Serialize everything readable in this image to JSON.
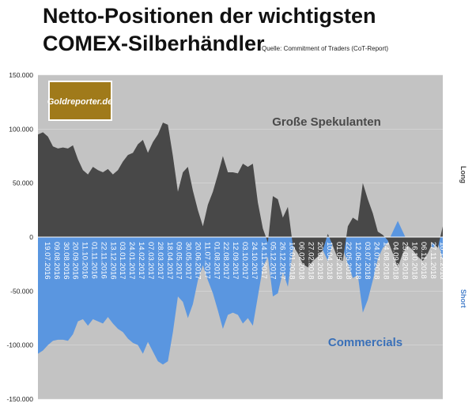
{
  "title_line1": "Netto-Positionen der wichtigsten",
  "title_line2": "COMEX-Silberhändler",
  "source": "Quelle: Commitment of Traders (CoT-Report)",
  "logo": {
    "text": "Goldreporter.de",
    "background": "#a07a1a"
  },
  "chart_data": {
    "type": "area",
    "title": "Netto-Positionen der wichtigsten COMEX-Silberhändler",
    "ylim": [
      -150000,
      150000
    ],
    "y_ticks": [
      150000,
      100000,
      50000,
      0,
      -50000,
      -100000,
      -150000
    ],
    "y_tick_labels": [
      "150.000",
      "100.000",
      "50.000",
      "0",
      "-50.000",
      "-100.000",
      "-150.000"
    ],
    "right_labels": [
      "Long",
      "Short"
    ],
    "x_tick_labels": [
      "19.07.2016",
      "09.08.2016",
      "30.08.2016",
      "20.09.2016",
      "11.10.2016",
      "01.11.2016",
      "22.11.2016",
      "13.12.2016",
      "03.01.2017",
      "24.01.2017",
      "14.02.2017",
      "07.03.2017",
      "28.03.2017",
      "18.04.2017",
      "09.05.2017",
      "30.05.2017",
      "20.06.2017",
      "11.07.2017",
      "01.08.2017",
      "22.08.2017",
      "12.09.2017",
      "03.10.2017",
      "24.10.2017",
      "14.11.2017",
      "05.12.2017",
      "26.12.2017",
      "16.01.2018",
      "06.02.2018",
      "27.02.2018",
      "20.03.2018",
      "10.04.2018",
      "01.05.2018",
      "22.05.2018",
      "12.06.2018",
      "03.07.2018",
      "24.07.2018",
      "14.08.2018",
      "04.09.2018",
      "25.09.2018",
      "16.10.2018",
      "06.11.2018",
      "27.11.2018",
      "18.12.2018"
    ],
    "background": "#c3c3c3",
    "series": [
      {
        "name": "Große Spekulanten",
        "color": "#484848",
        "values": [
          95000,
          97000,
          93000,
          84000,
          82000,
          83000,
          82000,
          85000,
          72000,
          62000,
          58000,
          65000,
          62000,
          60000,
          63000,
          58000,
          62000,
          70000,
          76000,
          78000,
          86000,
          90000,
          78000,
          88000,
          95000,
          106000,
          104000,
          75000,
          42000,
          60000,
          65000,
          43000,
          25000,
          10000,
          30000,
          42000,
          58000,
          75000,
          60000,
          60000,
          59000,
          68000,
          65000,
          68000,
          32000,
          8000,
          -5000,
          38000,
          35000,
          18000,
          28000,
          -8000,
          -15000,
          -25000,
          -28000,
          -22000,
          -18000,
          -12000,
          3000,
          -8000,
          -20000,
          -22000,
          10000,
          18000,
          15000,
          50000,
          35000,
          22000,
          5000,
          2000,
          -3000,
          -15000,
          -28000,
          -15000,
          -8000,
          -12000,
          -18000,
          -22000,
          -15000,
          -5000,
          -10000,
          10000
        ]
      },
      {
        "name": "Commercials",
        "color": "#5a96e0",
        "values": [
          -108000,
          -105000,
          -100000,
          -96000,
          -95000,
          -95000,
          -96000,
          -90000,
          -78000,
          -76000,
          -82000,
          -76000,
          -78000,
          -80000,
          -74000,
          -80000,
          -85000,
          -88000,
          -94000,
          -98000,
          -100000,
          -108000,
          -97000,
          -106000,
          -115000,
          -118000,
          -115000,
          -88000,
          -55000,
          -60000,
          -75000,
          -62000,
          -40000,
          -26000,
          -40000,
          -52000,
          -68000,
          -85000,
          -72000,
          -70000,
          -72000,
          -80000,
          -75000,
          -82000,
          -55000,
          -28000,
          -18000,
          -55000,
          -52000,
          -32000,
          -46000,
          -12000,
          -2000,
          -5000,
          -5000,
          -8000,
          -10000,
          -12000,
          -22000,
          -5000,
          -8000,
          -10000,
          -25000,
          -38000,
          -35000,
          -70000,
          -58000,
          -40000,
          -20000,
          -10000,
          -5000,
          5000,
          15000,
          5000,
          -5000,
          -3000,
          -8000,
          -5000,
          -3000,
          -10000,
          -5000,
          -20000
        ]
      }
    ]
  }
}
